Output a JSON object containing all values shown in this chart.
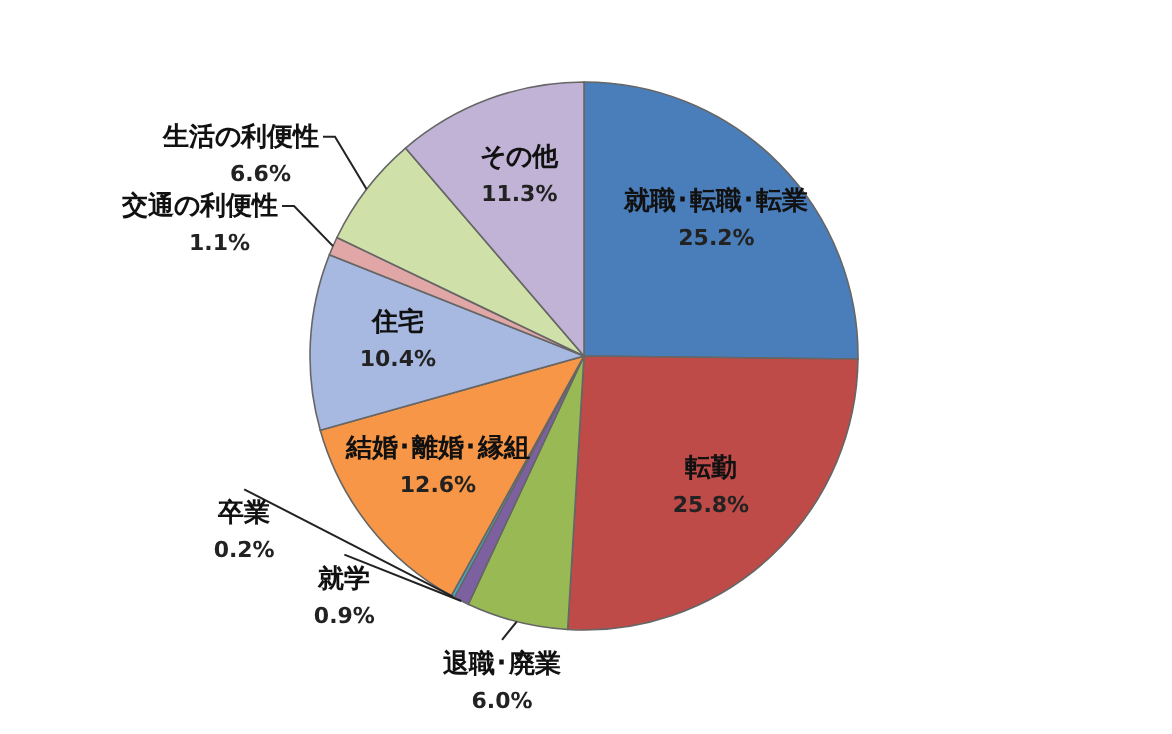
{
  "chart_data": {
    "type": "pie",
    "categories": [
      "就職･転職･転業",
      "転勤",
      "退職･廃業",
      "就学",
      "卒業",
      "結婚･離婚･縁組",
      "住宅",
      "交通の利便性",
      "生活の利便性",
      "その他"
    ],
    "values": [
      25.2,
      25.8,
      6.0,
      0.9,
      0.2,
      12.6,
      10.4,
      1.1,
      6.6,
      11.3
    ],
    "value_labels": [
      "25.2%",
      "25.8%",
      "6.0%",
      "0.9%",
      "0.2%",
      "12.6%",
      "10.4%",
      "1.1%",
      "6.6%",
      "11.3%"
    ],
    "colors": [
      "#4a7ebb",
      "#be4b48",
      "#98b954",
      "#7d60a0",
      "#46aac5",
      "#f79646",
      "#a7b9e0",
      "#e0a7a6",
      "#cfe0a9",
      "#c0b3d6"
    ]
  }
}
